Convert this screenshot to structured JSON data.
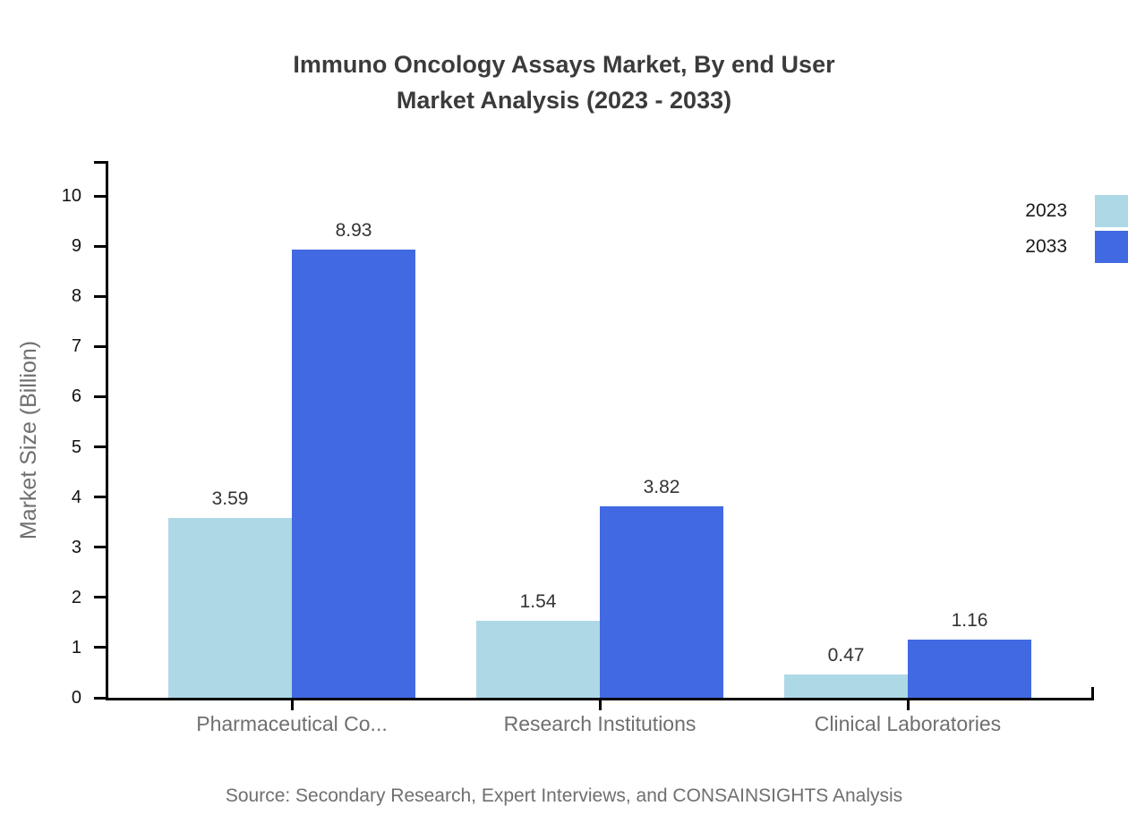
{
  "title": {
    "line1": "Immuno Oncology Assays Market, By end User",
    "line2": "Market Analysis (2023 - 2033)"
  },
  "source": "Source: Secondary Research, Expert Interviews, and CONSAINSIGHTS Analysis",
  "colors": {
    "series_2023": "#ADD8E6",
    "series_2033": "#4169E1",
    "axis": "#000000",
    "title_text": "#3b3b3b",
    "muted_text": "#6f6f6f",
    "tick_text": "#111111",
    "value_text": "#333333"
  },
  "chart_data": {
    "type": "bar",
    "categories": [
      "Pharmaceutical Co...",
      "Research Institutions",
      "Clinical Laboratories"
    ],
    "series": [
      {
        "name": "2023",
        "color": "#ADD8E6",
        "values": [
          3.59,
          1.54,
          0.47
        ]
      },
      {
        "name": "2033",
        "color": "#4169E1",
        "values": [
          8.93,
          3.82,
          1.16
        ]
      }
    ],
    "value_labels": [
      "3.59",
      "8.93",
      "1.54",
      "3.82",
      "0.47",
      "1.16"
    ],
    "title": "Immuno Oncology Assays Market, By end User Market Analysis (2023 - 2033)",
    "xlabel": "",
    "ylabel": "Market Size (Billion)",
    "ylim": [
      0,
      10
    ],
    "yticks": [
      0,
      1,
      2,
      3,
      4,
      5,
      6,
      7,
      8,
      9,
      10
    ],
    "grid": false,
    "legend_position": "top-right"
  }
}
